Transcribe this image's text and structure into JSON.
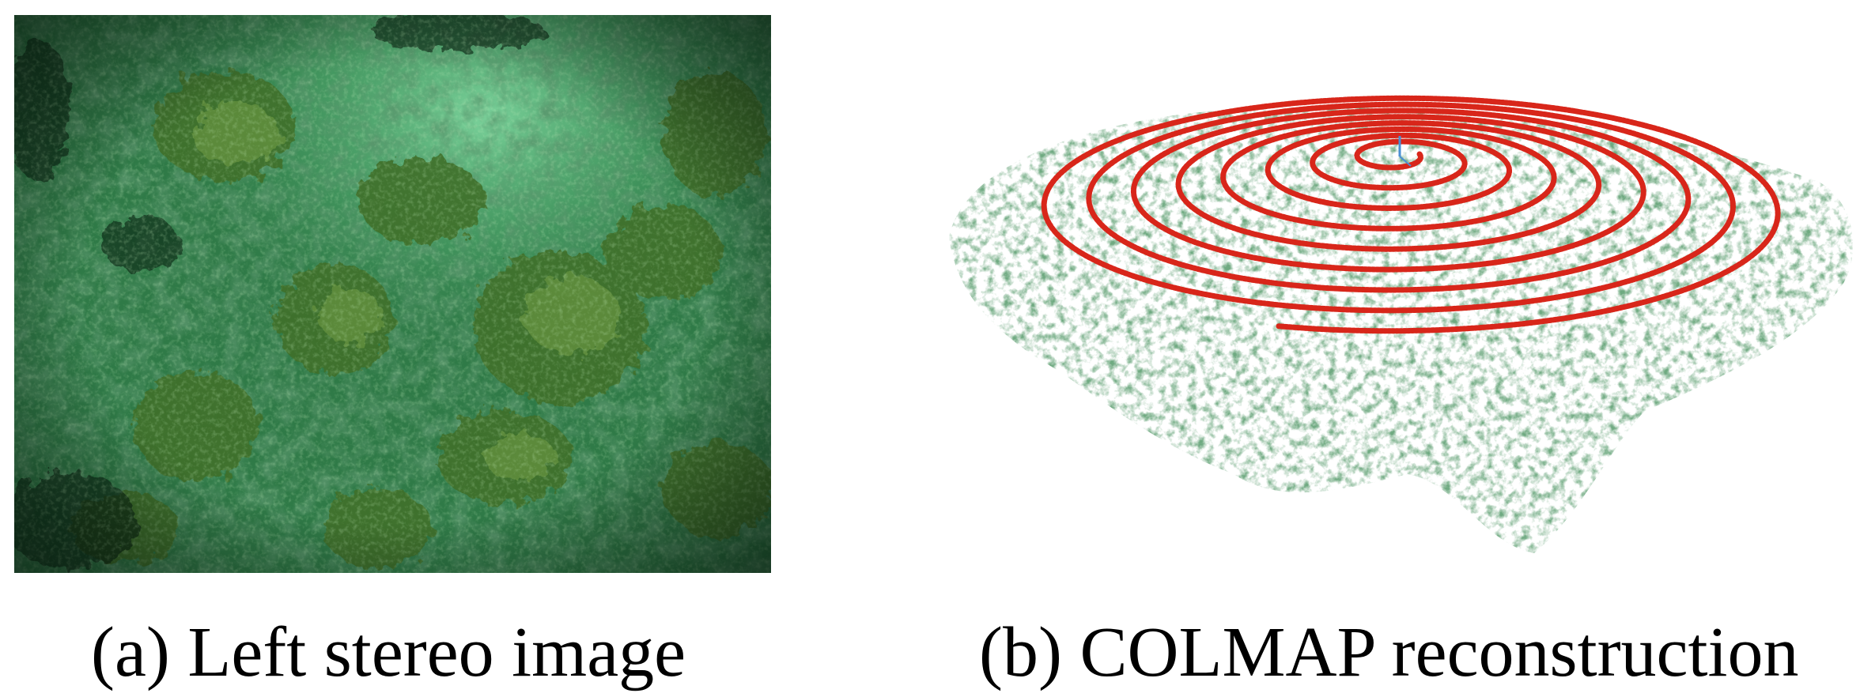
{
  "figure": {
    "panels": [
      {
        "id": "a",
        "caption": "(a) Left stereo image",
        "content": "underwater-coral-photo"
      },
      {
        "id": "b",
        "caption": "(b) COLMAP reconstruction",
        "content": "point-cloud-with-spiral-camera-path"
      }
    ]
  },
  "colors": {
    "water_dark": "#163a22",
    "water_mid": "#2f7a47",
    "water_light": "#6fc590",
    "coral": "#5c8a3a",
    "cloud_green": "#2e6b3d",
    "trajectory_red": "#d8261a",
    "axis_blue": "#4a8fd4"
  }
}
